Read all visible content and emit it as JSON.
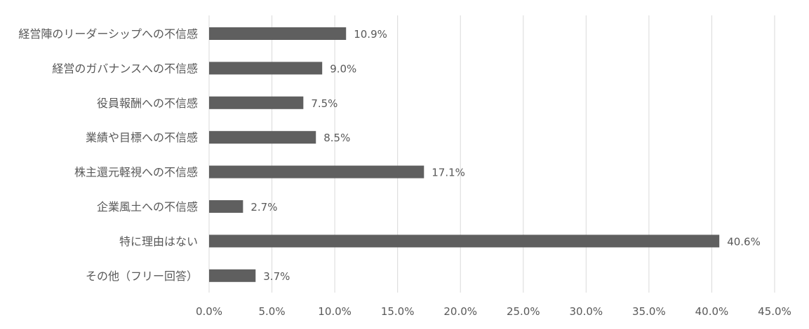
{
  "chart_data": {
    "type": "bar",
    "orientation": "horizontal",
    "categories": [
      "経営陣のリーダーシップへの不信感",
      "経営のガバナンスへの不信感",
      "役員報酬への不信感",
      "業績や目標への不信感",
      "株主還元軽視への不信感",
      "企業風土への不信感",
      "特に理由はない",
      "その他（フリー回答）"
    ],
    "values": [
      10.9,
      9.0,
      7.5,
      8.5,
      17.1,
      2.7,
      40.6,
      3.7
    ],
    "value_labels": [
      "10.9%",
      "9.0%",
      "7.5%",
      "8.5%",
      "17.1%",
      "2.7%",
      "40.6%",
      "3.7%"
    ],
    "xlim": [
      0,
      45
    ],
    "x_ticks": [
      0,
      5,
      10,
      15,
      20,
      25,
      30,
      35,
      40,
      45
    ],
    "x_tick_labels": [
      "0.0%",
      "5.0%",
      "10.0%",
      "15.0%",
      "20.0%",
      "25.0%",
      "30.0%",
      "35.0%",
      "40.0%",
      "45.0%"
    ],
    "grid": "vertical",
    "bar_color": "#5f5f5f",
    "grid_color": "#d9d9d9",
    "title": "",
    "xlabel": "",
    "ylabel": ""
  }
}
